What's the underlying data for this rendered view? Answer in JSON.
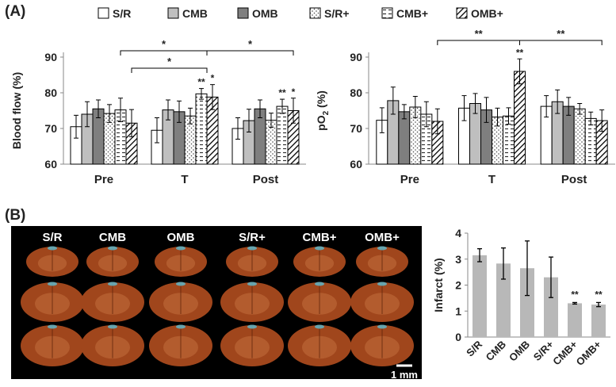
{
  "panel_labels": {
    "a": "(A)",
    "b": "(B)"
  },
  "legend": [
    "S/R",
    "CMB",
    "OMB",
    "S/R+",
    "CMB+",
    "OMB+"
  ],
  "colors": {
    "white": "#ffffff",
    "lightgray": "#bfbfbf",
    "darkgray": "#7f7f7f",
    "bar_gray": "#b8b8b8",
    "photo_bg": "#000000",
    "tissue": "#a0461c"
  },
  "chart_data": [
    {
      "type": "bar",
      "ylabel": "Blood flow (%)",
      "ylim": [
        60,
        90
      ],
      "yticks": [
        "60",
        "70",
        "80",
        "90"
      ],
      "categories": [
        "Pre",
        "T",
        "Post"
      ],
      "series": [
        {
          "name": "S/R",
          "values": [
            70.5,
            69.5,
            70
          ],
          "errors": [
            3.2,
            3.5,
            3
          ]
        },
        {
          "name": "CMB",
          "values": [
            74,
            75.2,
            72.2
          ],
          "errors": [
            3.5,
            2.8,
            3.2
          ]
        },
        {
          "name": "OMB",
          "values": [
            75.5,
            74.7,
            75.5
          ],
          "errors": [
            2.5,
            3,
            2.5
          ]
        },
        {
          "name": "S/R+",
          "values": [
            74.2,
            73.5,
            72.3
          ],
          "errors": [
            2.5,
            2.2,
            2
          ]
        },
        {
          "name": "CMB+",
          "values": [
            75.2,
            79.7,
            76.2
          ],
          "errors": [
            3.3,
            1.5,
            2
          ]
        },
        {
          "name": "OMB+",
          "values": [
            71.5,
            78.8,
            75
          ],
          "errors": [
            3.8,
            3.5,
            3.5
          ]
        }
      ],
      "annotations": [
        "**",
        "*",
        "**",
        "*"
      ],
      "significance": [
        {
          "label": "*"
        },
        {
          "label": "*"
        },
        {
          "label": "*"
        }
      ]
    },
    {
      "type": "bar",
      "ylabel_main": "pO",
      "ylabel_sub": "2",
      "ylabel_tail": " (%)",
      "ylim": [
        60,
        90
      ],
      "yticks": [
        "60",
        "70",
        "80",
        "90"
      ],
      "categories": [
        "Pre",
        "T",
        "Post"
      ],
      "series": [
        {
          "name": "S/R",
          "values": [
            72.3,
            75.7,
            76.2
          ],
          "errors": [
            3.5,
            3.5,
            3
          ]
        },
        {
          "name": "CMB",
          "values": [
            77.8,
            77,
            77.5
          ],
          "errors": [
            3.8,
            2.8,
            3.3
          ]
        },
        {
          "name": "OMB",
          "values": [
            74.7,
            75.2,
            76.2
          ],
          "errors": [
            2,
            3.5,
            2.5
          ]
        },
        {
          "name": "S/R+",
          "values": [
            76,
            73.2,
            75.5
          ],
          "errors": [
            3,
            2.5,
            1.5
          ]
        },
        {
          "name": "CMB+",
          "values": [
            74,
            73.5,
            72.8
          ],
          "errors": [
            3.5,
            2.3,
            1.8
          ]
        },
        {
          "name": "OMB+",
          "values": [
            72,
            86,
            72.2
          ],
          "errors": [
            3.5,
            3.5,
            3
          ]
        }
      ],
      "annotations": [
        "**"
      ],
      "significance": [
        {
          "label": "**"
        },
        {
          "label": "**"
        }
      ]
    },
    {
      "type": "bar",
      "ylabel": "Infarct (%)",
      "ylim": [
        0,
        4
      ],
      "yticks": [
        "0",
        "1",
        "2",
        "3",
        "4"
      ],
      "categories": [
        "S/R",
        "CMB",
        "OMB",
        "S/R+",
        "CMB+",
        "OMB+"
      ],
      "values": [
        3.15,
        2.83,
        2.65,
        2.3,
        1.3,
        1.25
      ],
      "errors": [
        0.25,
        0.6,
        1.05,
        0.78,
        0.03,
        0.08
      ],
      "annotations": [
        "**",
        "**"
      ]
    }
  ],
  "photo": {
    "columns": [
      "S/R",
      "CMB",
      "OMB",
      "S/R+",
      "CMB+",
      "OMB+"
    ],
    "scale_label": "1 mm"
  }
}
